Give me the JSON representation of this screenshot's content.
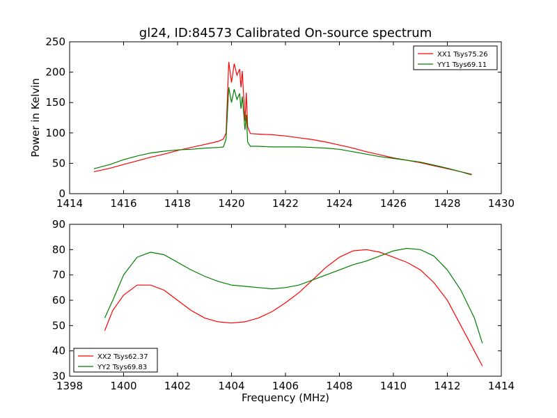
{
  "title": "gl24, ID:84573 Calibrated On-source spectrum",
  "colors": {
    "xx": "#ff0000",
    "yy": "#007f00"
  },
  "chart_data": [
    {
      "type": "line",
      "ylabel": "Power in Kelvin",
      "xlabel": "",
      "xlim": [
        1414,
        1430
      ],
      "ylim": [
        0,
        250
      ],
      "xticks": [
        "1414",
        "1416",
        "1418",
        "1420",
        "1422",
        "1424",
        "1426",
        "1428",
        "1430"
      ],
      "yticks": [
        "0",
        "50",
        "100",
        "150",
        "200",
        "250"
      ],
      "legend_position": "top-right",
      "series": [
        {
          "name": "XX1 Tsys75.26",
          "color": "#ff0000",
          "points": [
            [
              1414.9,
              36
            ],
            [
              1415.5,
              42
            ],
            [
              1416.0,
              48
            ],
            [
              1416.5,
              54
            ],
            [
              1417.0,
              60
            ],
            [
              1417.5,
              65
            ],
            [
              1418.0,
              71
            ],
            [
              1418.5,
              76
            ],
            [
              1419.0,
              81
            ],
            [
              1419.5,
              86
            ],
            [
              1419.7,
              90
            ],
            [
              1419.8,
              100
            ],
            [
              1419.9,
              217
            ],
            [
              1420.0,
              183
            ],
            [
              1420.1,
              214
            ],
            [
              1420.2,
              195
            ],
            [
              1420.3,
              205
            ],
            [
              1420.35,
              175
            ],
            [
              1420.4,
              202
            ],
            [
              1420.5,
              120
            ],
            [
              1420.55,
              166
            ],
            [
              1420.6,
              110
            ],
            [
              1420.7,
              99
            ],
            [
              1421.0,
              98
            ],
            [
              1421.5,
              97
            ],
            [
              1422.0,
              95
            ],
            [
              1422.5,
              92
            ],
            [
              1423.0,
              89
            ],
            [
              1423.5,
              85
            ],
            [
              1424.0,
              80
            ],
            [
              1424.5,
              75
            ],
            [
              1425.0,
              69
            ],
            [
              1425.5,
              64
            ],
            [
              1426.0,
              59
            ],
            [
              1426.5,
              55
            ],
            [
              1427.0,
              51
            ],
            [
              1427.5,
              46
            ],
            [
              1428.0,
              41
            ],
            [
              1428.5,
              36
            ],
            [
              1428.9,
              32
            ]
          ]
        },
        {
          "name": "YY1 Tsys69.11",
          "color": "#007f00",
          "points": [
            [
              1414.9,
              41
            ],
            [
              1415.5,
              48
            ],
            [
              1416.0,
              56
            ],
            [
              1416.5,
              62
            ],
            [
              1417.0,
              67
            ],
            [
              1417.5,
              70
            ],
            [
              1418.0,
              72
            ],
            [
              1418.5,
              73
            ],
            [
              1419.0,
              75
            ],
            [
              1419.5,
              76
            ],
            [
              1419.7,
              77
            ],
            [
              1419.8,
              90
            ],
            [
              1419.9,
              175
            ],
            [
              1420.0,
              150
            ],
            [
              1420.1,
              172
            ],
            [
              1420.2,
              155
            ],
            [
              1420.3,
              165
            ],
            [
              1420.35,
              140
            ],
            [
              1420.4,
              160
            ],
            [
              1420.5,
              105
            ],
            [
              1420.55,
              130
            ],
            [
              1420.6,
              85
            ],
            [
              1420.7,
              78
            ],
            [
              1421.0,
              78
            ],
            [
              1421.5,
              77
            ],
            [
              1422.0,
              77
            ],
            [
              1422.5,
              77
            ],
            [
              1423.0,
              76
            ],
            [
              1423.5,
              75
            ],
            [
              1424.0,
              73
            ],
            [
              1424.5,
              69
            ],
            [
              1425.0,
              65
            ],
            [
              1425.5,
              61
            ],
            [
              1426.0,
              58
            ],
            [
              1426.5,
              55
            ],
            [
              1427.0,
              52
            ],
            [
              1427.5,
              47
            ],
            [
              1428.0,
              42
            ],
            [
              1428.5,
              36
            ],
            [
              1428.9,
              31
            ]
          ]
        }
      ]
    },
    {
      "type": "line",
      "xlabel": "Frequency (MHz)",
      "ylabel": "",
      "xlim": [
        1398,
        1414
      ],
      "ylim": [
        30,
        90
      ],
      "xticks": [
        "1398",
        "1400",
        "1402",
        "1404",
        "1406",
        "1408",
        "1410",
        "1412",
        "1414"
      ],
      "yticks": [
        "30",
        "40",
        "50",
        "60",
        "70",
        "80",
        "90"
      ],
      "legend_position": "bottom-left",
      "series": [
        {
          "name": "XX2 Tsys62.37",
          "color": "#ff0000",
          "points": [
            [
              1399.3,
              48
            ],
            [
              1399.6,
              56
            ],
            [
              1400.0,
              62
            ],
            [
              1400.5,
              66
            ],
            [
              1401.0,
              66
            ],
            [
              1401.5,
              64
            ],
            [
              1402.0,
              60
            ],
            [
              1402.5,
              56
            ],
            [
              1403.0,
              53
            ],
            [
              1403.5,
              51.5
            ],
            [
              1404.0,
              51
            ],
            [
              1404.5,
              51.5
            ],
            [
              1405.0,
              53
            ],
            [
              1405.5,
              55.5
            ],
            [
              1406.0,
              59
            ],
            [
              1406.5,
              63
            ],
            [
              1407.0,
              68
            ],
            [
              1407.5,
              73
            ],
            [
              1408.0,
              77
            ],
            [
              1408.5,
              79.5
            ],
            [
              1409.0,
              80
            ],
            [
              1409.5,
              79
            ],
            [
              1410.0,
              77
            ],
            [
              1410.5,
              75
            ],
            [
              1411.0,
              72
            ],
            [
              1411.5,
              67
            ],
            [
              1412.0,
              60
            ],
            [
              1412.5,
              50
            ],
            [
              1413.0,
              40
            ],
            [
              1413.3,
              34
            ]
          ]
        },
        {
          "name": "YY2 Tsys69.83",
          "color": "#007f00",
          "points": [
            [
              1399.3,
              53
            ],
            [
              1399.6,
              60
            ],
            [
              1400.0,
              70
            ],
            [
              1400.5,
              77
            ],
            [
              1401.0,
              79
            ],
            [
              1401.5,
              78
            ],
            [
              1402.0,
              75
            ],
            [
              1402.5,
              72
            ],
            [
              1403.0,
              69.5
            ],
            [
              1403.5,
              67.5
            ],
            [
              1404.0,
              66
            ],
            [
              1404.5,
              65.5
            ],
            [
              1405.0,
              65
            ],
            [
              1405.5,
              64.5
            ],
            [
              1406.0,
              65
            ],
            [
              1406.5,
              66
            ],
            [
              1407.0,
              68
            ],
            [
              1407.5,
              70
            ],
            [
              1408.0,
              72
            ],
            [
              1408.5,
              74
            ],
            [
              1409.0,
              75.5
            ],
            [
              1409.5,
              77.5
            ],
            [
              1410.0,
              79.5
            ],
            [
              1410.5,
              80.5
            ],
            [
              1411.0,
              80
            ],
            [
              1411.5,
              77.5
            ],
            [
              1412.0,
              72
            ],
            [
              1412.5,
              64
            ],
            [
              1413.0,
              53
            ],
            [
              1413.3,
              43
            ]
          ]
        }
      ]
    }
  ]
}
